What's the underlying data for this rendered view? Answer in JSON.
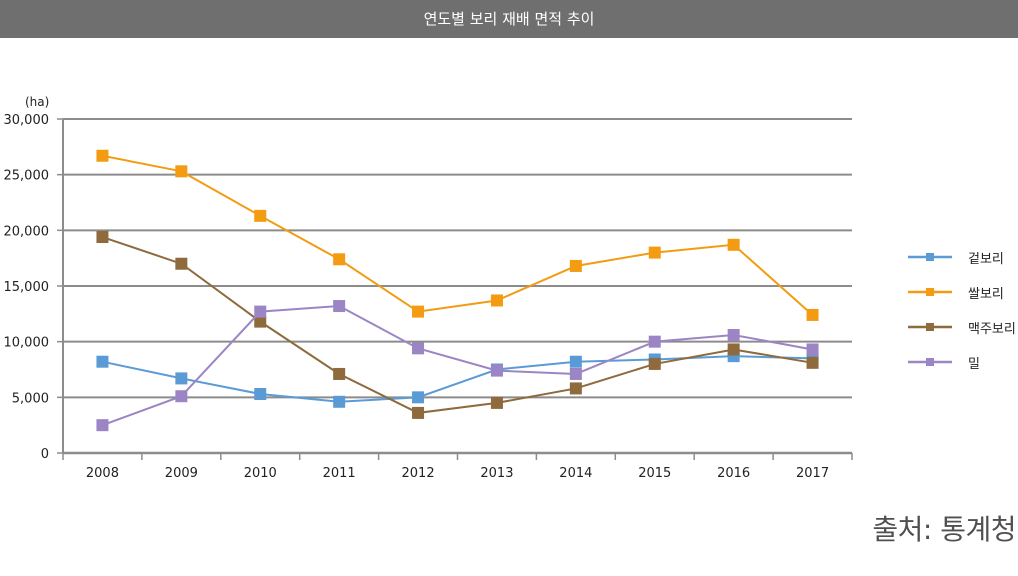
{
  "header": {
    "title": "연도별 보리 재배 면적 추이"
  },
  "source": "출처: 통계청",
  "chart_data": {
    "type": "line",
    "title": "연도별 보리 재배 면적 추이",
    "unit": "(ha)",
    "categories": [
      "2008",
      "2009",
      "2010",
      "2011",
      "2012",
      "2013",
      "2014",
      "2015",
      "2016",
      "2017"
    ],
    "ylim": [
      0,
      30000
    ],
    "yticks": [
      0,
      5000,
      10000,
      15000,
      20000,
      25000,
      30000
    ],
    "ytick_labels": [
      "0",
      "5,000",
      "10,000",
      "15,000",
      "20,000",
      "25,000",
      "30,000"
    ],
    "grid": true,
    "legend_position": "right",
    "series": [
      {
        "name": "겉보리",
        "color": "#5b9bd5",
        "values": [
          8200,
          6700,
          5300,
          4600,
          5000,
          7500,
          8200,
          8400,
          8700,
          8500
        ]
      },
      {
        "name": "쌀보리",
        "color": "#f39c12",
        "values": [
          26700,
          25300,
          21300,
          17400,
          12700,
          13700,
          16800,
          18000,
          18700,
          12400
        ]
      },
      {
        "name": "맥주보리",
        "color": "#8e6a3c",
        "values": [
          19400,
          17000,
          11800,
          7100,
          3600,
          4500,
          5800,
          8000,
          9300,
          8100
        ]
      },
      {
        "name": "밀",
        "color": "#9b85c4",
        "values": [
          2500,
          5100,
          12700,
          13200,
          9400,
          7400,
          7100,
          10000,
          10600,
          9300
        ]
      }
    ]
  }
}
